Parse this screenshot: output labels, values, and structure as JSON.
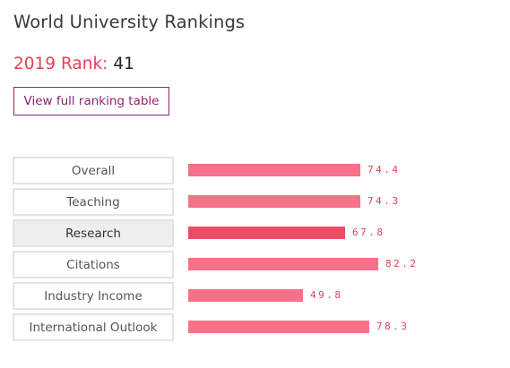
{
  "title": "World University Rankings",
  "rank": {
    "label": "2019 Rank:",
    "value": "41"
  },
  "button": {
    "label": "View full ranking table"
  },
  "colors": {
    "accent": "#e5405a",
    "bar": "#f77189",
    "bar_active": "#ec4b66",
    "button_border": "#8c2470"
  },
  "metrics": [
    {
      "name": "Overall",
      "score": 74.4,
      "display": "74.4",
      "active": false
    },
    {
      "name": "Teaching",
      "score": 74.3,
      "display": "74.3",
      "active": false
    },
    {
      "name": "Research",
      "score": 67.8,
      "display": "67.8",
      "active": true
    },
    {
      "name": "Citations",
      "score": 82.2,
      "display": "82.2",
      "active": false
    },
    {
      "name": "Industry Income",
      "score": 49.8,
      "display": "49.8",
      "active": false
    },
    {
      "name": "International Outlook",
      "score": 78.3,
      "display": "78.3",
      "active": false
    }
  ]
}
